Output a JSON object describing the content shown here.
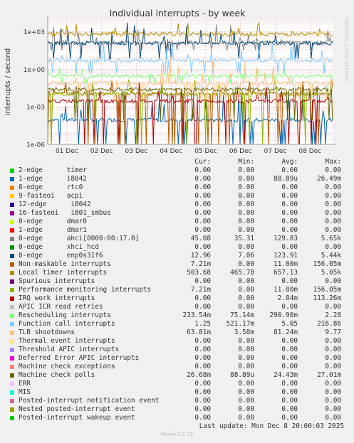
{
  "chart_data": {
    "type": "line",
    "title": "Individual interrupts - by week",
    "ylabel": "interrupts / second",
    "yscale": "log",
    "ylim": [
      1e-06,
      10000
    ],
    "ytick_labels": [
      "1e-06",
      "1e-03",
      "1e+00",
      "1e+03"
    ],
    "ytick_values": [
      1e-06,
      0.001,
      1,
      1000
    ],
    "xtick_labels": [
      "01 Dec",
      "02 Dec",
      "03 Dec",
      "04 Dec",
      "05 Dec",
      "06 Dec",
      "07 Dec",
      "08 Dec"
    ],
    "grid": true,
    "side_label": "RRDTOOL / TOBI OETIKER",
    "columns": [
      "Cur:",
      "Min:",
      "Avg:",
      "Max:"
    ],
    "series": [
      {
        "name": "2-edge      timer",
        "color": "#00cc00",
        "cur": "0.00",
        "min": "0.00",
        "avg": "0.00",
        "max": "0.00"
      },
      {
        "name": "1-edge      i8042",
        "color": "#0066b3",
        "cur": "0.00",
        "min": "0.00",
        "avg": "88.89u",
        "max": "26.49m"
      },
      {
        "name": "8-edge      rtc0",
        "color": "#ff8000",
        "cur": "0.00",
        "min": "0.00",
        "avg": "0.00",
        "max": "0.00"
      },
      {
        "name": "9-fasteoi   acpi",
        "color": "#ffcc00",
        "cur": "0.00",
        "min": "0.00",
        "avg": "0.00",
        "max": "0.00"
      },
      {
        "name": "12-edge      i8042",
        "color": "#330099",
        "cur": "0.00",
        "min": "0.00",
        "avg": "0.00",
        "max": "0.00"
      },
      {
        "name": "16-fasteoi   i801_smbus",
        "color": "#990099",
        "cur": "0.00",
        "min": "0.00",
        "avg": "0.00",
        "max": "0.00"
      },
      {
        "name": "0-edge      dmar0",
        "color": "#ccff00",
        "cur": "0.00",
        "min": "0.00",
        "avg": "0.00",
        "max": "0.00"
      },
      {
        "name": "1-edge      dmar1",
        "color": "#ff0000",
        "cur": "0.00",
        "min": "0.00",
        "avg": "0.00",
        "max": "0.00"
      },
      {
        "name": "0-edge      ahci[0000:00:17.0]",
        "color": "#808080",
        "cur": "45.08",
        "min": "35.31",
        "avg": "129.83",
        "max": "5.65k"
      },
      {
        "name": "0-edge      xhci_hcd",
        "color": "#008f00",
        "cur": "0.00",
        "min": "0.00",
        "avg": "0.00",
        "max": "0.00"
      },
      {
        "name": "0-edge      enp0s31f6",
        "color": "#00487d",
        "cur": "12.96",
        "min": "7.06",
        "avg": "123.91",
        "max": "5.44k"
      },
      {
        "name": "Non-maskable interrupts",
        "color": "#b35a00",
        "cur": "7.21m",
        "min": "0.00",
        "avg": "11.00m",
        "max": "156.05m"
      },
      {
        "name": "Local timer interrupts",
        "color": "#b38f00",
        "cur": "503.68",
        "min": "465.78",
        "avg": "657.13",
        "max": "5.05k"
      },
      {
        "name": "Spurious interrupts",
        "color": "#6b006b",
        "cur": "0.00",
        "min": "0.00",
        "avg": "0.00",
        "max": "0.00"
      },
      {
        "name": "Performance monitoring interrupts",
        "color": "#8fb300",
        "cur": "7.21m",
        "min": "0.00",
        "avg": "11.00m",
        "max": "156.05m"
      },
      {
        "name": "IRQ work interrupts",
        "color": "#b30000",
        "cur": "0.00",
        "min": "0.00",
        "avg": "2.84m",
        "max": "113.26m"
      },
      {
        "name": "APIC ICR read retries",
        "color": "#bebebe",
        "cur": "0.00",
        "min": "0.00",
        "avg": "0.00",
        "max": "0.00"
      },
      {
        "name": "Rescheduling interrupts",
        "color": "#80ff80",
        "cur": "233.54m",
        "min": "75.14m",
        "avg": "290.90m",
        "max": "2.28"
      },
      {
        "name": "Function call interrupts",
        "color": "#80c9ff",
        "cur": "1.25",
        "min": "521.17m",
        "avg": "5.05",
        "max": "216.86"
      },
      {
        "name": "TLB shootdowns",
        "color": "#ffc080",
        "cur": "63.81m",
        "min": "3.58m",
        "avg": "81.24m",
        "max": "9.77"
      },
      {
        "name": "Thermal event interrupts",
        "color": "#ffe680",
        "cur": "0.00",
        "min": "0.00",
        "avg": "0.00",
        "max": "0.00"
      },
      {
        "name": "Threshold APIC interrupts",
        "color": "#aa80ff",
        "cur": "0.00",
        "min": "0.00",
        "avg": "0.00",
        "max": "0.00"
      },
      {
        "name": "Deferred Error APIC interrupts",
        "color": "#ee00cc",
        "cur": "0.00",
        "min": "0.00",
        "avg": "0.00",
        "max": "0.00"
      },
      {
        "name": "Machine check exceptions",
        "color": "#ff8080",
        "cur": "0.00",
        "min": "0.00",
        "avg": "0.00",
        "max": "0.00"
      },
      {
        "name": "Machine check polls",
        "color": "#666600",
        "cur": "26.68m",
        "min": "88.89u",
        "avg": "24.43m",
        "max": "27.01m"
      },
      {
        "name": "ERR",
        "color": "#ffbfff",
        "cur": "0.00",
        "min": "0.00",
        "avg": "0.00",
        "max": "0.00"
      },
      {
        "name": "MIS",
        "color": "#00ffcc",
        "cur": "0.00",
        "min": "0.00",
        "avg": "0.00",
        "max": "0.00"
      },
      {
        "name": "Posted-interrupt notification event",
        "color": "#cc6699",
        "cur": "0.00",
        "min": "0.00",
        "avg": "0.00",
        "max": "0.00"
      },
      {
        "name": "Nested posted-interrupt event",
        "color": "#999900",
        "cur": "0.00",
        "min": "0.00",
        "avg": "0.00",
        "max": "0.00"
      },
      {
        "name": "Posted-interrupt wakeup event",
        "color": "#00cc00",
        "cur": "0.00",
        "min": "0.00",
        "avg": "0.00",
        "max": "0.00"
      }
    ]
  },
  "footer": {
    "last_update": "Last update: Mon Dec  8 20:00:03 2025",
    "generator": "Munin 2.0.75"
  }
}
